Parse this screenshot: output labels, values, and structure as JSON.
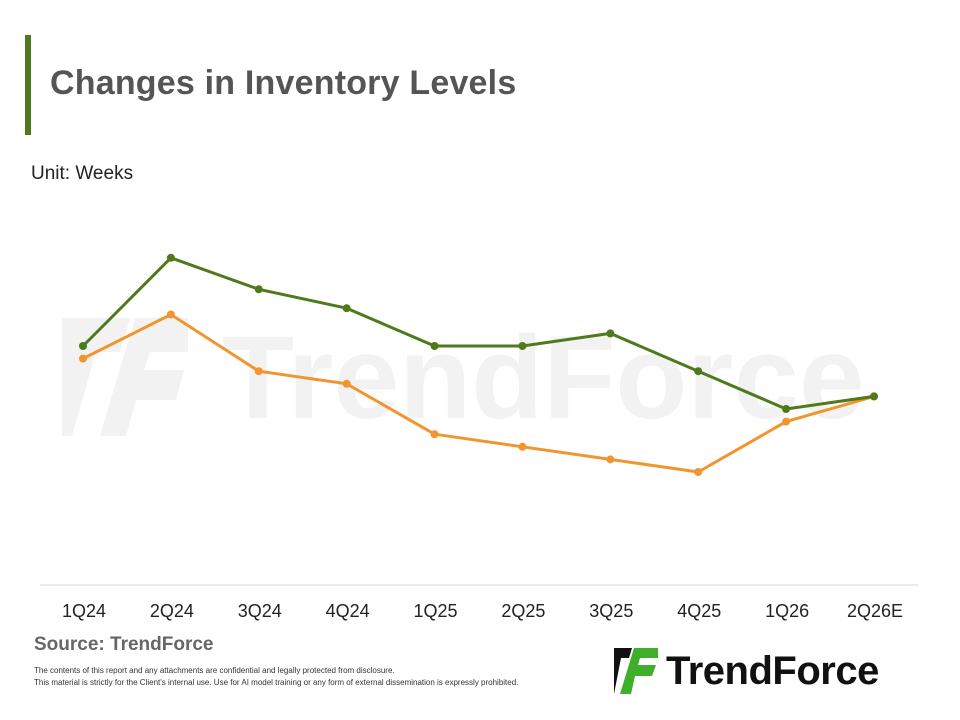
{
  "header": {
    "title": "Changes in Inventory Levels",
    "unit": "Unit: Weeks"
  },
  "footer": {
    "source": "Source: TrendForce",
    "disclaimer_line1": "The contents of this report and any attachments are confidential and legally protected from disclosure.",
    "disclaimer_line2": "This material is strictly for the Client's internal use. Use for AI model training or any form of external dissemination is expressly prohibited.",
    "logo_text": "TrendForce",
    "watermark_text": "TrendForce"
  },
  "colors": {
    "accent": "#4f7a1c",
    "series_green": "#4f7a1c",
    "series_orange": "#f0952f",
    "axis": "#d9d9d9",
    "watermark": "#f2f2f2"
  },
  "chart_data": {
    "type": "line",
    "title": "Changes in Inventory Levels",
    "ylabel": "Unit: Weeks",
    "categories": [
      "1Q24",
      "2Q24",
      "3Q24",
      "4Q24",
      "1Q25",
      "2Q25",
      "3Q25",
      "4Q25",
      "1Q26",
      "2Q26E"
    ],
    "ylim": [
      0,
      100
    ],
    "y_axis_labels_shown": false,
    "grid": false,
    "legend": "none",
    "series": [
      {
        "color": "#4f7a1c",
        "values": [
          60,
          88,
          78,
          72,
          60,
          60,
          64,
          52,
          40,
          44
        ]
      },
      {
        "color": "#f0952f",
        "values": [
          56,
          70,
          52,
          48,
          32,
          28,
          24,
          20,
          36,
          44
        ]
      }
    ]
  }
}
